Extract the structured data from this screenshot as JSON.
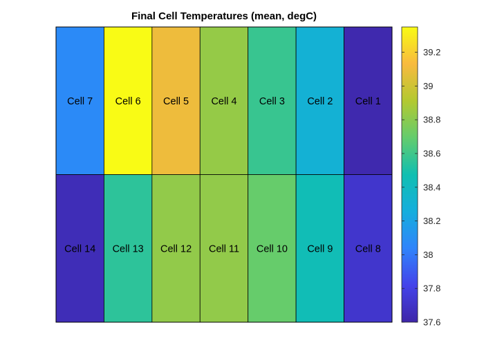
{
  "chart_data": {
    "type": "heatmap",
    "title": "Final Cell Temperatures (mean, degC)",
    "layout": "2 rows x 7 columns",
    "rows": [
      [
        {
          "label": "Cell 7",
          "value": 38.07
        },
        {
          "label": "Cell 6",
          "value": 39.35
        },
        {
          "label": "Cell 5",
          "value": 39.1
        },
        {
          "label": "Cell 4",
          "value": 38.83
        },
        {
          "label": "Cell 3",
          "value": 38.58
        },
        {
          "label": "Cell 2",
          "value": 38.3
        },
        {
          "label": "Cell 1",
          "value": 37.62
        }
      ],
      [
        {
          "label": "Cell 14",
          "value": 37.65
        },
        {
          "label": "Cell 13",
          "value": 38.55
        },
        {
          "label": "Cell 12",
          "value": 38.82
        },
        {
          "label": "Cell 11",
          "value": 38.82
        },
        {
          "label": "Cell 10",
          "value": 38.7
        },
        {
          "label": "Cell 9",
          "value": 38.45
        },
        {
          "label": "Cell 8",
          "value": 37.72
        }
      ]
    ],
    "colorbar": {
      "colormap": "parula",
      "range": [
        37.6,
        39.35
      ],
      "ticks": [
        37.6,
        37.8,
        38,
        38.2,
        38.4,
        38.6,
        38.8,
        39,
        39.2
      ],
      "tick_labels": [
        "37.6",
        "37.8",
        "38",
        "38.2",
        "38.4",
        "38.6",
        "38.8",
        "39",
        "39.2"
      ]
    },
    "grid": true
  }
}
